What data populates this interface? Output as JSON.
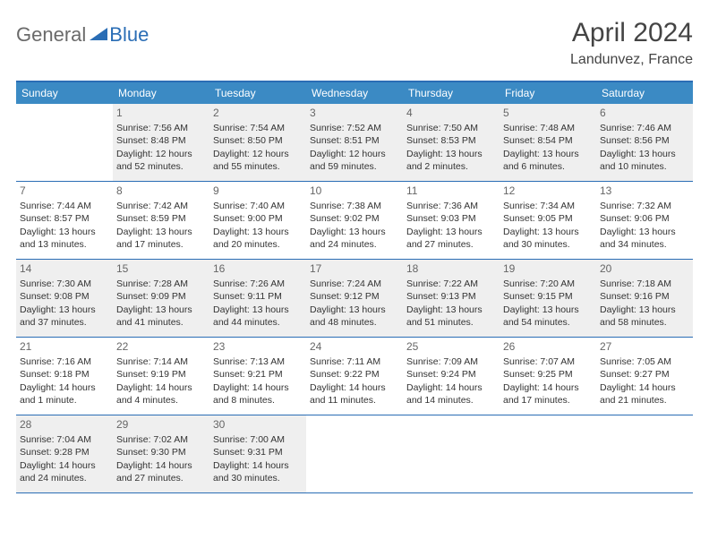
{
  "brand": {
    "part1": "General",
    "part2": "Blue"
  },
  "title": "April 2024",
  "location": "Landunvez, France",
  "colors": {
    "header_bar": "#3b8ac4",
    "border": "#2a6db5",
    "shade": "#efefef",
    "text": "#333333",
    "title": "#444444"
  },
  "weekdays": [
    "Sunday",
    "Monday",
    "Tuesday",
    "Wednesday",
    "Thursday",
    "Friday",
    "Saturday"
  ],
  "weeks": [
    [
      {
        "num": "",
        "sunrise": "",
        "sunset": "",
        "daylight": "",
        "shade": false
      },
      {
        "num": "1",
        "sunrise": "Sunrise: 7:56 AM",
        "sunset": "Sunset: 8:48 PM",
        "daylight": "Daylight: 12 hours and 52 minutes.",
        "shade": true
      },
      {
        "num": "2",
        "sunrise": "Sunrise: 7:54 AM",
        "sunset": "Sunset: 8:50 PM",
        "daylight": "Daylight: 12 hours and 55 minutes.",
        "shade": true
      },
      {
        "num": "3",
        "sunrise": "Sunrise: 7:52 AM",
        "sunset": "Sunset: 8:51 PM",
        "daylight": "Daylight: 12 hours and 59 minutes.",
        "shade": true
      },
      {
        "num": "4",
        "sunrise": "Sunrise: 7:50 AM",
        "sunset": "Sunset: 8:53 PM",
        "daylight": "Daylight: 13 hours and 2 minutes.",
        "shade": true
      },
      {
        "num": "5",
        "sunrise": "Sunrise: 7:48 AM",
        "sunset": "Sunset: 8:54 PM",
        "daylight": "Daylight: 13 hours and 6 minutes.",
        "shade": true
      },
      {
        "num": "6",
        "sunrise": "Sunrise: 7:46 AM",
        "sunset": "Sunset: 8:56 PM",
        "daylight": "Daylight: 13 hours and 10 minutes.",
        "shade": true
      }
    ],
    [
      {
        "num": "7",
        "sunrise": "Sunrise: 7:44 AM",
        "sunset": "Sunset: 8:57 PM",
        "daylight": "Daylight: 13 hours and 13 minutes.",
        "shade": false
      },
      {
        "num": "8",
        "sunrise": "Sunrise: 7:42 AM",
        "sunset": "Sunset: 8:59 PM",
        "daylight": "Daylight: 13 hours and 17 minutes.",
        "shade": false
      },
      {
        "num": "9",
        "sunrise": "Sunrise: 7:40 AM",
        "sunset": "Sunset: 9:00 PM",
        "daylight": "Daylight: 13 hours and 20 minutes.",
        "shade": false
      },
      {
        "num": "10",
        "sunrise": "Sunrise: 7:38 AM",
        "sunset": "Sunset: 9:02 PM",
        "daylight": "Daylight: 13 hours and 24 minutes.",
        "shade": false
      },
      {
        "num": "11",
        "sunrise": "Sunrise: 7:36 AM",
        "sunset": "Sunset: 9:03 PM",
        "daylight": "Daylight: 13 hours and 27 minutes.",
        "shade": false
      },
      {
        "num": "12",
        "sunrise": "Sunrise: 7:34 AM",
        "sunset": "Sunset: 9:05 PM",
        "daylight": "Daylight: 13 hours and 30 minutes.",
        "shade": false
      },
      {
        "num": "13",
        "sunrise": "Sunrise: 7:32 AM",
        "sunset": "Sunset: 9:06 PM",
        "daylight": "Daylight: 13 hours and 34 minutes.",
        "shade": false
      }
    ],
    [
      {
        "num": "14",
        "sunrise": "Sunrise: 7:30 AM",
        "sunset": "Sunset: 9:08 PM",
        "daylight": "Daylight: 13 hours and 37 minutes.",
        "shade": true
      },
      {
        "num": "15",
        "sunrise": "Sunrise: 7:28 AM",
        "sunset": "Sunset: 9:09 PM",
        "daylight": "Daylight: 13 hours and 41 minutes.",
        "shade": true
      },
      {
        "num": "16",
        "sunrise": "Sunrise: 7:26 AM",
        "sunset": "Sunset: 9:11 PM",
        "daylight": "Daylight: 13 hours and 44 minutes.",
        "shade": true
      },
      {
        "num": "17",
        "sunrise": "Sunrise: 7:24 AM",
        "sunset": "Sunset: 9:12 PM",
        "daylight": "Daylight: 13 hours and 48 minutes.",
        "shade": true
      },
      {
        "num": "18",
        "sunrise": "Sunrise: 7:22 AM",
        "sunset": "Sunset: 9:13 PM",
        "daylight": "Daylight: 13 hours and 51 minutes.",
        "shade": true
      },
      {
        "num": "19",
        "sunrise": "Sunrise: 7:20 AM",
        "sunset": "Sunset: 9:15 PM",
        "daylight": "Daylight: 13 hours and 54 minutes.",
        "shade": true
      },
      {
        "num": "20",
        "sunrise": "Sunrise: 7:18 AM",
        "sunset": "Sunset: 9:16 PM",
        "daylight": "Daylight: 13 hours and 58 minutes.",
        "shade": true
      }
    ],
    [
      {
        "num": "21",
        "sunrise": "Sunrise: 7:16 AM",
        "sunset": "Sunset: 9:18 PM",
        "daylight": "Daylight: 14 hours and 1 minute.",
        "shade": false
      },
      {
        "num": "22",
        "sunrise": "Sunrise: 7:14 AM",
        "sunset": "Sunset: 9:19 PM",
        "daylight": "Daylight: 14 hours and 4 minutes.",
        "shade": false
      },
      {
        "num": "23",
        "sunrise": "Sunrise: 7:13 AM",
        "sunset": "Sunset: 9:21 PM",
        "daylight": "Daylight: 14 hours and 8 minutes.",
        "shade": false
      },
      {
        "num": "24",
        "sunrise": "Sunrise: 7:11 AM",
        "sunset": "Sunset: 9:22 PM",
        "daylight": "Daylight: 14 hours and 11 minutes.",
        "shade": false
      },
      {
        "num": "25",
        "sunrise": "Sunrise: 7:09 AM",
        "sunset": "Sunset: 9:24 PM",
        "daylight": "Daylight: 14 hours and 14 minutes.",
        "shade": false
      },
      {
        "num": "26",
        "sunrise": "Sunrise: 7:07 AM",
        "sunset": "Sunset: 9:25 PM",
        "daylight": "Daylight: 14 hours and 17 minutes.",
        "shade": false
      },
      {
        "num": "27",
        "sunrise": "Sunrise: 7:05 AM",
        "sunset": "Sunset: 9:27 PM",
        "daylight": "Daylight: 14 hours and 21 minutes.",
        "shade": false
      }
    ],
    [
      {
        "num": "28",
        "sunrise": "Sunrise: 7:04 AM",
        "sunset": "Sunset: 9:28 PM",
        "daylight": "Daylight: 14 hours and 24 minutes.",
        "shade": true
      },
      {
        "num": "29",
        "sunrise": "Sunrise: 7:02 AM",
        "sunset": "Sunset: 9:30 PM",
        "daylight": "Daylight: 14 hours and 27 minutes.",
        "shade": true
      },
      {
        "num": "30",
        "sunrise": "Sunrise: 7:00 AM",
        "sunset": "Sunset: 9:31 PM",
        "daylight": "Daylight: 14 hours and 30 minutes.",
        "shade": true
      },
      {
        "num": "",
        "sunrise": "",
        "sunset": "",
        "daylight": "",
        "shade": false
      },
      {
        "num": "",
        "sunrise": "",
        "sunset": "",
        "daylight": "",
        "shade": false
      },
      {
        "num": "",
        "sunrise": "",
        "sunset": "",
        "daylight": "",
        "shade": false
      },
      {
        "num": "",
        "sunrise": "",
        "sunset": "",
        "daylight": "",
        "shade": false
      }
    ]
  ]
}
